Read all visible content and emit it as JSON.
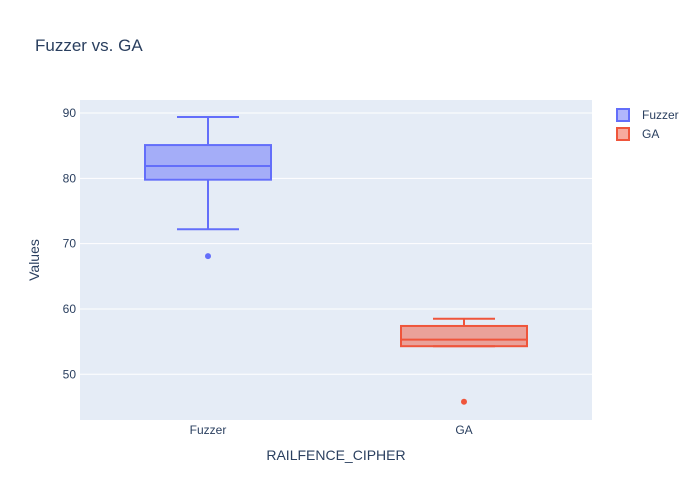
{
  "chart_data": {
    "type": "box",
    "title": "Fuzzer vs. GA",
    "xlabel": "RAILFENCE_CIPHER",
    "ylabel": "Values",
    "ylim": [
      43,
      92
    ],
    "yticks": [
      50,
      60,
      70,
      80,
      90
    ],
    "grid": true,
    "legend_position": "top-right",
    "categories": [
      "Fuzzer",
      "GA"
    ],
    "series": [
      {
        "name": "Fuzzer",
        "category": "Fuzzer",
        "color": "#636efa",
        "fill": "rgba(99,110,250,0.5)",
        "lowerfence": 72.2,
        "q1": 79.8,
        "median": 81.9,
        "q3": 85.1,
        "upperfence": 89.4,
        "outliers": [
          68.1
        ]
      },
      {
        "name": "GA",
        "category": "GA",
        "color": "#EF553B",
        "fill": "rgba(239,85,59,0.5)",
        "lowerfence": 54.3,
        "q1": 54.3,
        "median": 55.3,
        "q3": 57.4,
        "upperfence": 58.5,
        "outliers": [
          45.8
        ]
      }
    ]
  }
}
